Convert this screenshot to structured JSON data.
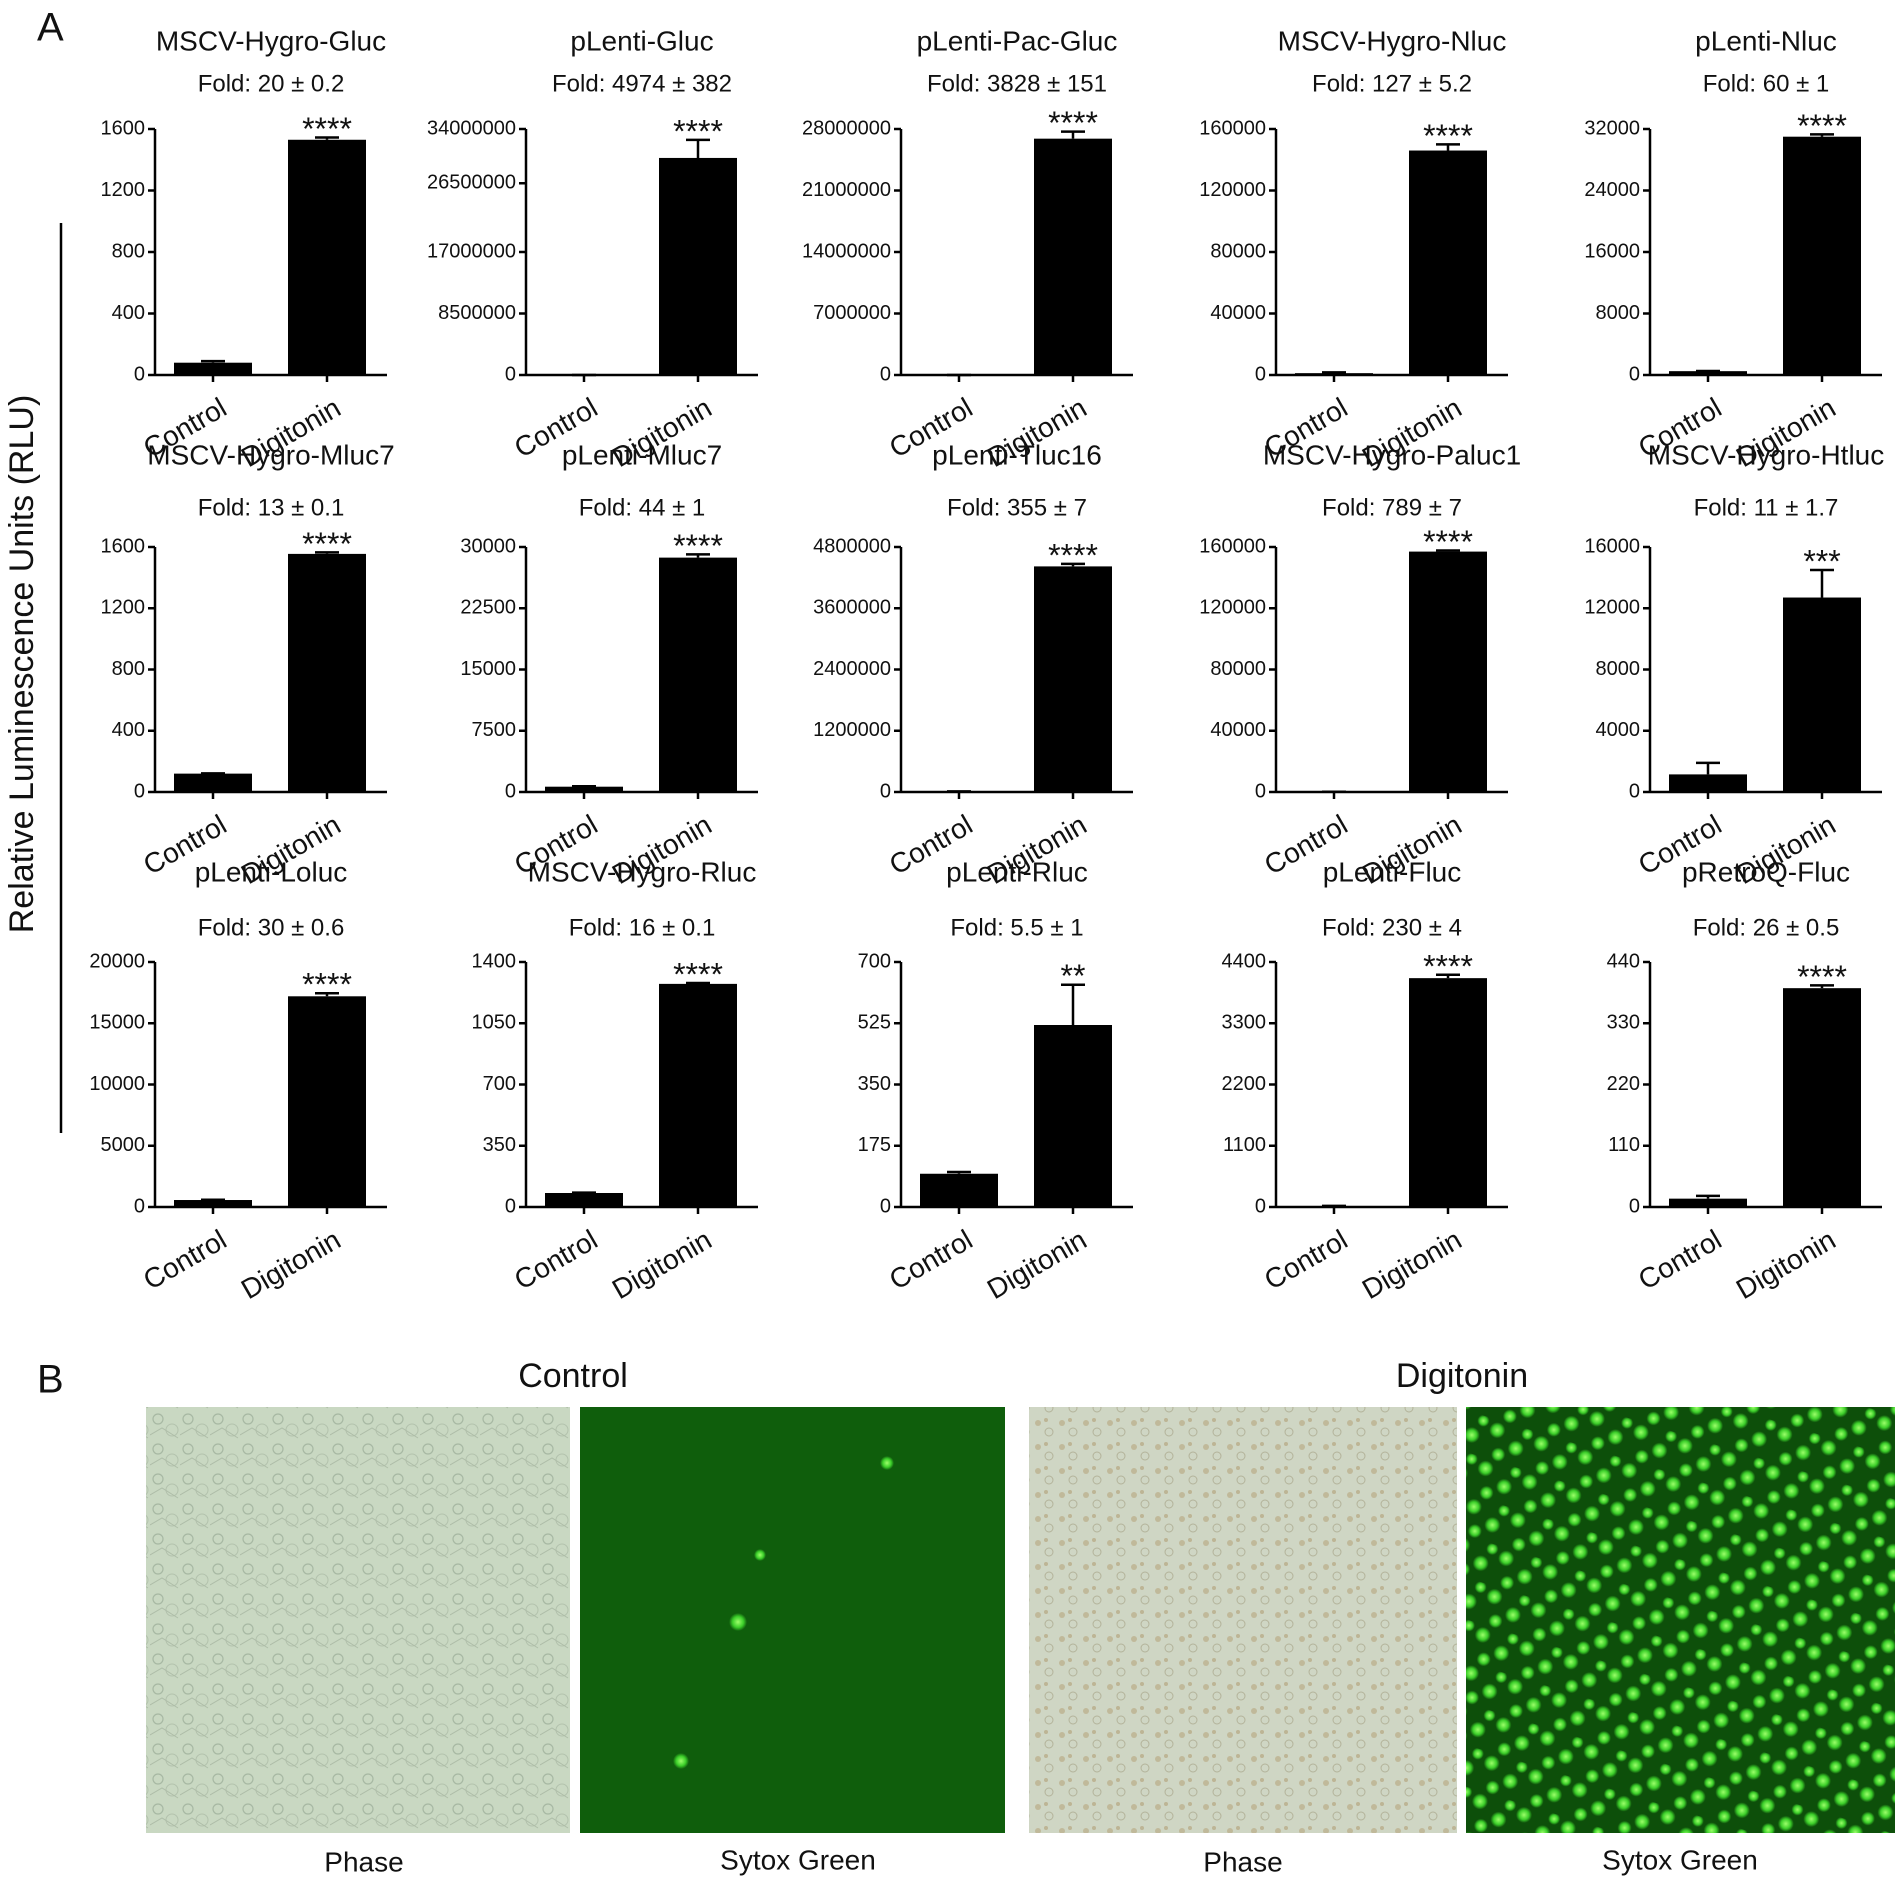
{
  "figure": {
    "panel_a": "A",
    "y_label": "Relative Luminescence Units (RLU)",
    "panel_b": "B",
    "groups": [
      "Control",
      "Digitonin"
    ],
    "images": [
      "Phase",
      "Sytox Green",
      "Phase",
      "Sytox Green"
    ]
  },
  "chart_data": [
    {
      "type": "bar",
      "title": "MSCV-Hygro-Gluc",
      "subtitle": "Fold: 20 ± 0.2",
      "categories": [
        "Control",
        "Digitonin"
      ],
      "values": [
        80,
        1530
      ],
      "errors": [
        10,
        15
      ],
      "annotation": "****",
      "color": "#000000",
      "ylim": [
        0,
        1600
      ],
      "yticks": [
        0,
        400,
        800,
        1200,
        1600
      ]
    },
    {
      "type": "bar",
      "title": "pLenti-Gluc",
      "subtitle": "Fold: 4974 ± 382",
      "categories": [
        "Control",
        "Digitonin"
      ],
      "values": [
        6000,
        30000000
      ],
      "errors": [
        0,
        2500000
      ],
      "annotation": "****",
      "color": "#000000",
      "ylim": [
        0,
        34000000
      ],
      "yticks": [
        0,
        8500000,
        17000000,
        26500000,
        34000000
      ]
    },
    {
      "type": "bar",
      "title": "pLenti-Pac-Gluc",
      "subtitle": "Fold: 3828 ± 151",
      "categories": [
        "Control",
        "Digitonin"
      ],
      "values": [
        7000,
        26900000
      ],
      "errors": [
        0,
        800000
      ],
      "annotation": "****",
      "color": "#000000",
      "ylim": [
        0,
        28000000
      ],
      "yticks": [
        0,
        7000000,
        14000000,
        21000000,
        28000000
      ]
    },
    {
      "type": "bar",
      "title": "MSCV-Hygro-Nluc",
      "subtitle": "Fold: 127 ± 5.2",
      "categories": [
        "Control",
        "Digitonin"
      ],
      "values": [
        1200,
        146000
      ],
      "errors": [
        500,
        4000
      ],
      "annotation": "****",
      "color": "#000000",
      "ylim": [
        0,
        160000
      ],
      "yticks": [
        0,
        40000,
        80000,
        120000,
        160000
      ]
    },
    {
      "type": "bar",
      "title": "pLenti-Nluc",
      "subtitle": "Fold: 60 ± 1",
      "categories": [
        "Control",
        "Digitonin"
      ],
      "values": [
        500,
        31000
      ],
      "errors": [
        20,
        300
      ],
      "annotation": "****",
      "color": "#000000",
      "ylim": [
        0,
        32000
      ],
      "yticks": [
        0,
        8000,
        16000,
        24000,
        32000
      ]
    },
    {
      "type": "bar",
      "title": "MSCV-Hygro-Mluc7",
      "subtitle": "Fold: 13 ± 0.1",
      "categories": [
        "Control",
        "Digitonin"
      ],
      "values": [
        120,
        1555
      ],
      "errors": [
        2,
        10
      ],
      "annotation": "****",
      "color": "#000000",
      "ylim": [
        0,
        1600
      ],
      "yticks": [
        0,
        400,
        800,
        1200,
        1600
      ]
    },
    {
      "type": "bar",
      "title": "pLenti-Mluc7",
      "subtitle": "Fold: 44 ± 1",
      "categories": [
        "Control",
        "Digitonin"
      ],
      "values": [
        650,
        28700
      ],
      "errors": [
        50,
        400
      ],
      "annotation": "****",
      "color": "#000000",
      "ylim": [
        0,
        30000
      ],
      "yticks": [
        0,
        7500,
        15000,
        22500,
        30000
      ]
    },
    {
      "type": "bar",
      "title": "pLenti-Tluc16",
      "subtitle": "Fold: 355 ± 7",
      "categories": [
        "Control",
        "Digitonin"
      ],
      "values": [
        12000,
        4420000
      ],
      "errors": [
        0,
        50000
      ],
      "annotation": "****",
      "color": "#000000",
      "ylim": [
        0,
        4800000
      ],
      "yticks": [
        0,
        1200000,
        2400000,
        3600000,
        4800000
      ]
    },
    {
      "type": "bar",
      "title": "MSCV-Hygro-Paluc1",
      "subtitle": "Fold: 789 ± 7",
      "categories": [
        "Control",
        "Digitonin"
      ],
      "values": [
        200,
        157000
      ],
      "errors": [
        0,
        700
      ],
      "annotation": "****",
      "color": "#000000",
      "ylim": [
        0,
        160000
      ],
      "yticks": [
        0,
        40000,
        80000,
        120000,
        160000
      ]
    },
    {
      "type": "bar",
      "title": "MSCV-Hygro-Htluc",
      "subtitle": "Fold: 11 ± 1.7",
      "categories": [
        "Control",
        "Digitonin"
      ],
      "values": [
        1150,
        12700
      ],
      "errors": [
        750,
        1800
      ],
      "annotation": "***",
      "color": "#000000",
      "ylim": [
        0,
        16000
      ],
      "yticks": [
        0,
        4000,
        8000,
        12000,
        16000
      ]
    },
    {
      "type": "bar",
      "title": "pLenti-Loluc",
      "subtitle": "Fold: 30 ± 0.6",
      "categories": [
        "Control",
        "Digitonin"
      ],
      "values": [
        570,
        17200
      ],
      "errors": [
        20,
        250
      ],
      "annotation": "****",
      "color": "#000000",
      "ylim": [
        0,
        20000
      ],
      "yticks": [
        0,
        5000,
        10000,
        15000,
        20000
      ]
    },
    {
      "type": "bar",
      "title": "MSCV-Hygro-Rluc",
      "subtitle": "Fold: 16 ± 0.1",
      "categories": [
        "Control",
        "Digitonin"
      ],
      "values": [
        80,
        1275
      ],
      "errors": [
        2,
        5
      ],
      "annotation": "****",
      "color": "#000000",
      "ylim": [
        0,
        1400
      ],
      "yticks": [
        0,
        350,
        700,
        1050,
        1400
      ]
    },
    {
      "type": "bar",
      "title": "pLenti-Rluc",
      "subtitle": "Fold: 5.5 ± 1",
      "categories": [
        "Control",
        "Digitonin"
      ],
      "values": [
        95,
        520
      ],
      "errors": [
        5,
        115
      ],
      "annotation": "**",
      "color": "#000000",
      "ylim": [
        0,
        700
      ],
      "yticks": [
        0,
        175,
        350,
        525,
        700
      ]
    },
    {
      "type": "bar",
      "title": "pLenti-Fluc",
      "subtitle": "Fold: 230 ± 4",
      "categories": [
        "Control",
        "Digitonin"
      ],
      "values": [
        18,
        4110
      ],
      "errors": [
        2,
        60
      ],
      "annotation": "****",
      "color": "#000000",
      "ylim": [
        0,
        4400
      ],
      "yticks": [
        0,
        1100,
        2200,
        3300,
        4400
      ]
    },
    {
      "type": "bar",
      "title": "pRetroQ-Fluc",
      "subtitle": "Fold: 26 ± 0.5",
      "categories": [
        "Control",
        "Digitonin"
      ],
      "values": [
        15,
        393
      ],
      "errors": [
        5,
        5
      ],
      "annotation": "****",
      "color": "#000000",
      "ylim": [
        0,
        440
      ],
      "yticks": [
        0,
        110,
        220,
        330,
        440
      ]
    }
  ]
}
